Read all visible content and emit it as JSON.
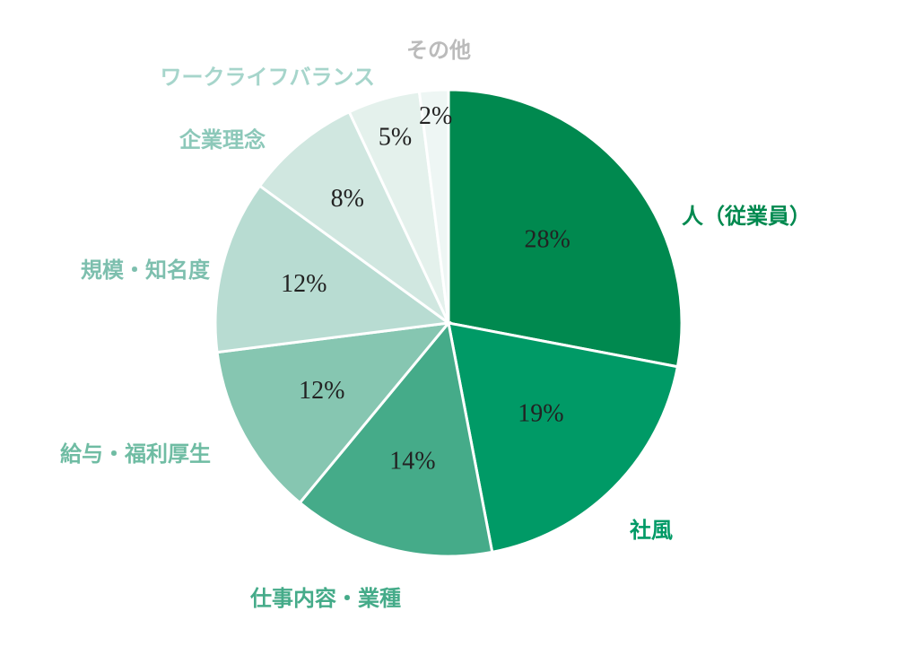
{
  "chart_data": {
    "type": "pie",
    "title": "",
    "start": "top",
    "direction": "clockwise",
    "unit": "%",
    "slices": [
      {
        "label": "人（従業員）",
        "value": 28,
        "value_label": "28%",
        "color": "#00894f"
      },
      {
        "label": "社風",
        "value": 19,
        "value_label": "19%",
        "color": "#009a66"
      },
      {
        "label": "仕事内容・業種",
        "value": 14,
        "value_label": "14%",
        "color": "#45ab89"
      },
      {
        "label": "給与・福利厚生",
        "value": 12,
        "value_label": "12%",
        "color": "#86c6b1"
      },
      {
        "label": "規模・知名度",
        "value": 12,
        "value_label": "12%",
        "color": "#b8dcd2"
      },
      {
        "label": "企業理念",
        "value": 8,
        "value_label": "8%",
        "color": "#d0e7e0"
      },
      {
        "label": "ワークライフバランス",
        "value": 5,
        "value_label": "5%",
        "color": "#e4f1ec"
      },
      {
        "label": "その他",
        "value": 2,
        "value_label": "2%",
        "color": "#eef6f4"
      }
    ],
    "label_colors": [
      "#00894f",
      "#009a66",
      "#45ab89",
      "#6fbca3",
      "#7dbfae",
      "#8cc8b9",
      "#a6d5cb",
      "#bbbbbb"
    ]
  }
}
